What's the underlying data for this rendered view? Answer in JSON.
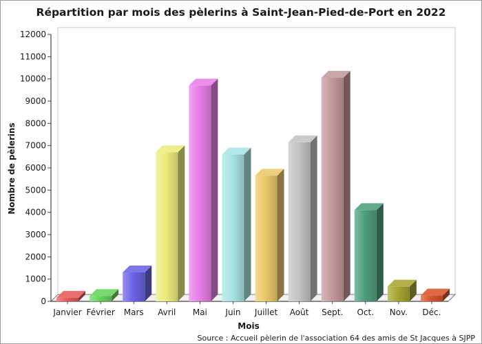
{
  "chart_data": {
    "type": "bar",
    "title": "Répartition par mois des pèlerins à Saint-Jean-Pied-de-Port en 2022",
    "xlabel": "Mois",
    "ylabel": "Nombre de pèlerins",
    "source": "Source : Accueil pèlerin de l'association 64 des amis de St Jacques à SJPP",
    "categories": [
      "Janvier",
      "Février",
      "Mars",
      "Avril",
      "Mai",
      "Juin",
      "Juillet",
      "Août",
      "Sept.",
      "Oct.",
      "Nov.",
      "Déc."
    ],
    "values": [
      160,
      240,
      1300,
      6700,
      9700,
      6600,
      5650,
      7150,
      10050,
      4100,
      660,
      260
    ],
    "colors": [
      "#e65a5a",
      "#66d45c",
      "#6a63e6",
      "#ecec7c",
      "#e87ee8",
      "#a8e4e4",
      "#ecc86a",
      "#c4c4c4",
      "#c49a9a",
      "#4e9e7a",
      "#a6a630",
      "#d8542c"
    ],
    "ylim": [
      0,
      12000
    ],
    "yticks": [
      0,
      1000,
      2000,
      3000,
      4000,
      5000,
      6000,
      7000,
      8000,
      9000,
      10000,
      11000,
      12000
    ],
    "grid": false,
    "legend": "none"
  }
}
